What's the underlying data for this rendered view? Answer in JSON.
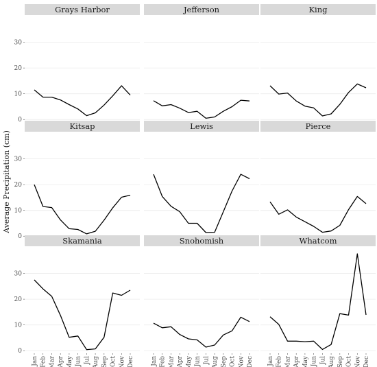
{
  "chart_data": {
    "type": "line",
    "layout": "facet-grid-3x3",
    "ylabel": "Average Precipitation (cm)",
    "ylim": [
      -1,
      40
    ],
    "yticks": [
      0,
      10,
      20,
      30
    ],
    "months": [
      "Jan",
      "Feb",
      "Mar",
      "Apr",
      "May",
      "Jun",
      "Jul",
      "Aug",
      "Sep",
      "Oct",
      "Nov",
      "Dec"
    ],
    "grid": true,
    "colors": {
      "line": "#000000",
      "strip": "#d9d9d9",
      "grid": "#ebebeb"
    },
    "panels": [
      {
        "name": "Grays Harbor",
        "values": [
          11.5,
          8.7,
          8.7,
          7.6,
          5.8,
          4.1,
          1.5,
          2.6,
          5.6,
          9.2,
          13.1,
          9.5
        ]
      },
      {
        "name": "Jefferson",
        "values": [
          7.3,
          5.3,
          5.8,
          4.4,
          2.7,
          3.2,
          0.5,
          1.0,
          3.2,
          5.0,
          7.5,
          7.2
        ]
      },
      {
        "name": "King",
        "values": [
          13.1,
          9.9,
          10.3,
          7.2,
          5.2,
          4.5,
          1.4,
          2.2,
          5.9,
          10.5,
          13.8,
          12.3
        ]
      },
      {
        "name": "Kitsap",
        "values": [
          20.0,
          11.5,
          11.1,
          6.3,
          2.9,
          2.6,
          0.9,
          1.9,
          6.2,
          11.0,
          15.1,
          15.9
        ]
      },
      {
        "name": "Lewis",
        "values": [
          24.0,
          15.4,
          11.6,
          9.5,
          5.0,
          5.0,
          1.4,
          1.5,
          9.5,
          17.5,
          24.0,
          22.3
        ]
      },
      {
        "name": "Pierce",
        "values": [
          13.3,
          8.5,
          10.2,
          7.4,
          5.6,
          3.8,
          1.5,
          2.0,
          4.2,
          10.3,
          15.4,
          12.6
        ]
      },
      {
        "name": "Skamania",
        "values": [
          27.5,
          24.0,
          21.1,
          13.7,
          5.2,
          5.7,
          0.4,
          0.7,
          5.2,
          22.4,
          21.5,
          23.5
        ]
      },
      {
        "name": "Snohomish",
        "values": [
          10.7,
          8.9,
          9.3,
          6.3,
          4.6,
          4.2,
          1.4,
          2.2,
          6.1,
          7.7,
          13.0,
          11.3
        ]
      },
      {
        "name": "Whatcom",
        "values": [
          13.2,
          10.2,
          3.7,
          3.7,
          3.5,
          3.7,
          0.5,
          2.4,
          14.4,
          13.8,
          37.6,
          13.9
        ]
      }
    ]
  }
}
